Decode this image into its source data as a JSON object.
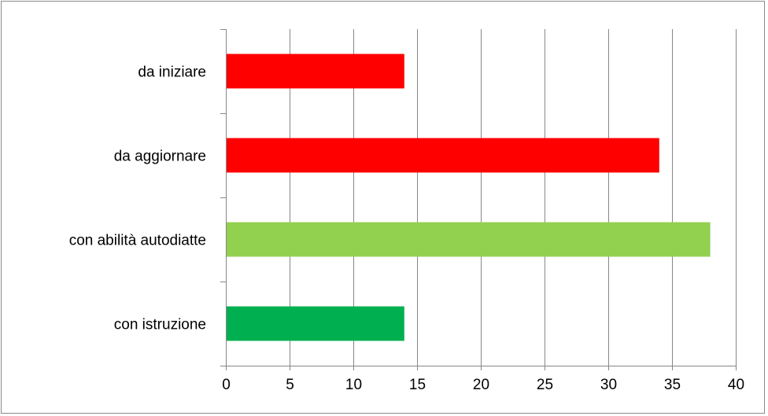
{
  "chart_data": {
    "type": "bar",
    "orientation": "horizontal",
    "categories": [
      "da iniziare",
      "da aggiornare",
      "con abilità autodiatte",
      "con istruzione"
    ],
    "values": [
      14,
      34,
      38,
      14
    ],
    "colors": [
      "#ff0000",
      "#ff0000",
      "#92d050",
      "#00b050"
    ],
    "xlim": [
      0,
      40
    ],
    "xticks": [
      0,
      5,
      10,
      15,
      20,
      25,
      30,
      35,
      40
    ],
    "grid": "vertical",
    "gridColor": "#878787",
    "legend": "none",
    "title": "",
    "xlabel": "",
    "ylabel": ""
  }
}
